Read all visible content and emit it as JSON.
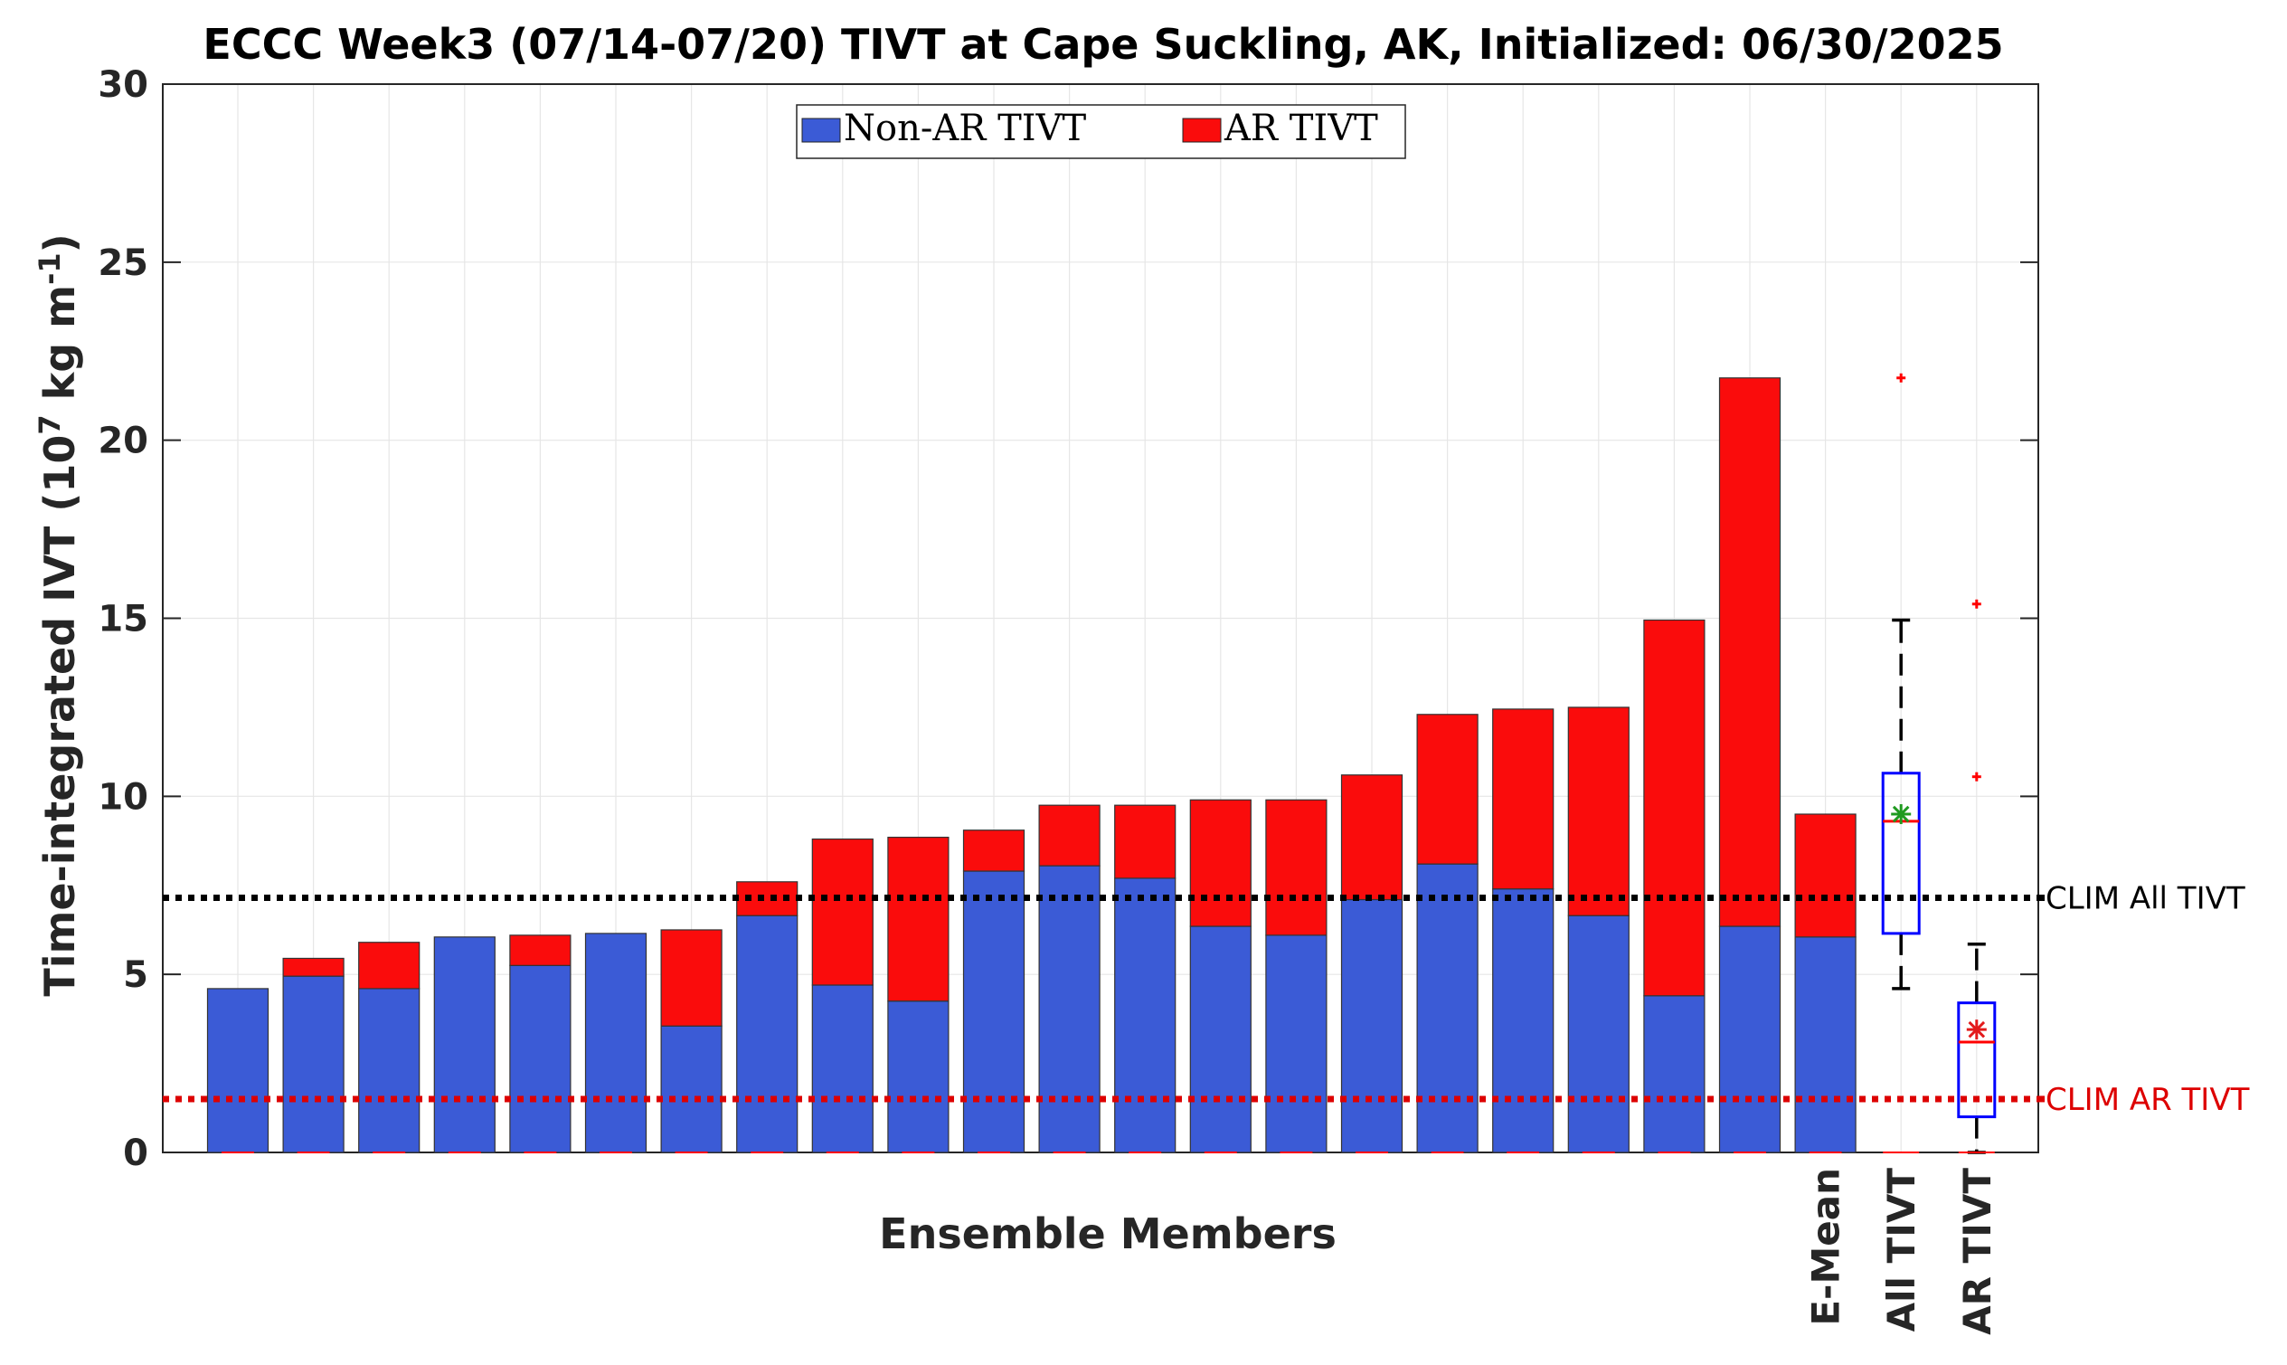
{
  "chart_data": {
    "type": "bar",
    "stacked": true,
    "title": "ECCC Week3 (07/14-07/20) TIVT at Cape Suckling, AK, Initialized: 06/30/2025",
    "xlabel": "Ensemble Members",
    "ylabel": "Time-integrated IVT (10",
    "ylabel_exp_outer": "7",
    "ylabel_mid": " kg m",
    "ylabel_exp_inner": "-1",
    "ylabel_end": ")",
    "ylim": [
      0,
      30
    ],
    "yticks": [
      "0",
      "5",
      "10",
      "15",
      "20",
      "25",
      "30"
    ],
    "grid": true,
    "legend_position": "top-center",
    "categories": [
      "",
      "",
      "",
      "",
      "",
      "",
      "",
      "",
      "",
      "",
      "",
      "",
      "",
      "",
      "",
      "",
      "",
      "",
      "",
      "",
      "",
      "E-Mean"
    ],
    "series": [
      {
        "name": "Non-AR TIVT",
        "color": "#3b5bd6",
        "values": [
          4.6,
          4.95,
          4.6,
          6.05,
          5.25,
          6.15,
          3.55,
          6.65,
          4.7,
          4.25,
          7.9,
          8.05,
          7.7,
          6.35,
          6.1,
          7.1,
          8.1,
          7.4,
          6.65,
          4.4,
          6.35,
          6.05
        ]
      },
      {
        "name": "AR TIVT",
        "color": "#fa0c0c",
        "values": [
          0,
          0.5,
          1.3,
          0,
          0.85,
          0,
          2.7,
          0.95,
          4.1,
          4.6,
          1.15,
          1.7,
          2.05,
          3.55,
          3.8,
          3.5,
          4.2,
          5.05,
          5.85,
          10.55,
          15.4,
          3.45
        ]
      }
    ],
    "boxplots": [
      {
        "label": "All TIVT",
        "box_color": "#0000ff",
        "mean_color": "#1f9a1f",
        "outlier_color": "#ff0000",
        "whisker_low": 4.6,
        "q1": 6.15,
        "median": 9.3,
        "q3": 10.65,
        "whisker_high": 14.95,
        "mean": 9.5,
        "outliers": [
          21.75
        ]
      },
      {
        "label": "AR TIVT",
        "box_color": "#0000ff",
        "mean_color": "#e31a1c",
        "outlier_color": "#ff0000",
        "whisker_low": 0,
        "q1": 1.0,
        "median": 3.1,
        "q3": 4.2,
        "whisker_high": 5.85,
        "mean": 3.45,
        "outliers": [
          10.55,
          15.4
        ]
      }
    ],
    "reference_lines": [
      {
        "label": "CLIM All TIVT",
        "value": 7.15,
        "color": "#000000"
      },
      {
        "label": "CLIM AR TIVT",
        "value": 1.5,
        "color": "#dd0000"
      }
    ]
  }
}
